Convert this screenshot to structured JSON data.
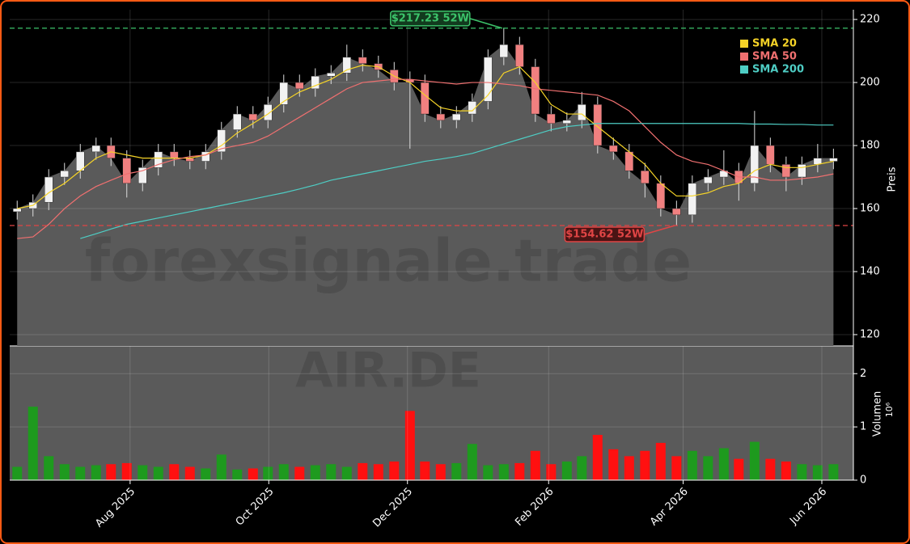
{
  "chart_data": [
    {
      "type": "candlestick",
      "symbol": "AIR.DE",
      "watermark": "forexsignale.trade",
      "ylabel": "Preis",
      "x": [
        2025.445,
        2025.464,
        2025.483,
        2025.502,
        2025.521,
        2025.54,
        2025.558,
        2025.577,
        2025.596,
        2025.615,
        2025.634,
        2025.653,
        2025.672,
        2025.691,
        2025.71,
        2025.729,
        2025.747,
        2025.766,
        2025.785,
        2025.804,
        2025.823,
        2025.842,
        2025.861,
        2025.88,
        2025.899,
        2025.918,
        2025.936,
        2025.955,
        2025.974,
        2025.993,
        2026.012,
        2026.031,
        2026.05,
        2026.069,
        2026.088,
        2026.107,
        2026.125,
        2026.144,
        2026.163,
        2026.182,
        2026.201,
        2026.22,
        2026.239,
        2026.258,
        2026.277,
        2026.296,
        2026.314,
        2026.333,
        2026.352,
        2026.371,
        2026.39,
        2026.409,
        2026.428
      ],
      "open": [
        159,
        160,
        162,
        170,
        172,
        178,
        180,
        176,
        168,
        173,
        178,
        176,
        175,
        178,
        185,
        190,
        188,
        193,
        200,
        198,
        202,
        203,
        208,
        206,
        204,
        201,
        200,
        190,
        188,
        190,
        194,
        208,
        212,
        205,
        190,
        187,
        188,
        193,
        180,
        178,
        172,
        168,
        160,
        158,
        168,
        170,
        172,
        168,
        180,
        174,
        170,
        174,
        175
      ],
      "high": [
        162.5,
        164.5,
        172.5,
        174.5,
        180.5,
        182.5,
        182.5,
        178.5,
        175.5,
        180.5,
        180.5,
        178.5,
        180.5,
        187.5,
        192.5,
        192.5,
        195.5,
        202.5,
        202.5,
        204.5,
        205.5,
        212,
        210.5,
        208.5,
        206.5,
        203.5,
        202.5,
        192.5,
        192.5,
        196.5,
        210.5,
        217.23,
        214.5,
        207.5,
        192.5,
        190.5,
        197,
        195.5,
        182.5,
        180.5,
        174.5,
        170.5,
        162.5,
        170.5,
        172.5,
        178.5,
        174.5,
        191,
        182.5,
        176.5,
        176.5,
        180.5,
        179
      ],
      "low": [
        156.5,
        157.5,
        159.5,
        167.5,
        169.5,
        175.5,
        173.5,
        163.5,
        165.5,
        170.5,
        173.5,
        172.5,
        172.5,
        175.5,
        182.5,
        185.5,
        185.5,
        190.5,
        195.5,
        195.5,
        199.5,
        200.5,
        203.5,
        201.5,
        197.5,
        179,
        187.5,
        185.5,
        185.5,
        187.5,
        191.5,
        205.5,
        202.5,
        187.5,
        184.5,
        184.5,
        185.5,
        177.5,
        175.5,
        169.5,
        163.5,
        157.5,
        154.62,
        155.5,
        165.5,
        167.5,
        162.5,
        165.5,
        171.5,
        165.5,
        167.5,
        171.5,
        172.5
      ],
      "close": [
        160,
        162,
        170,
        172,
        178,
        180,
        176,
        168,
        173,
        178,
        176,
        175,
        178,
        185,
        190,
        188,
        193,
        200,
        198,
        202,
        203,
        208,
        206,
        204,
        200,
        200,
        190,
        188,
        190,
        194,
        208,
        212,
        205,
        190,
        187,
        188,
        193,
        180,
        178,
        172,
        168,
        160,
        158,
        168,
        170,
        172,
        168,
        180,
        174,
        170,
        174,
        176,
        176
      ],
      "up_color": "#f2f2f2",
      "down_color": "#f08080",
      "area_color": "#5a5a5a",
      "series": [
        {
          "name": "SMA 20",
          "color": "#f5d327",
          "values": [
            160,
            161,
            165,
            168,
            172,
            176,
            178,
            177,
            176,
            176,
            176,
            176,
            177,
            180,
            184,
            187,
            190,
            194,
            197,
            199,
            201,
            204,
            205.5,
            205,
            202,
            200,
            196,
            192,
            191,
            191,
            196,
            203,
            205,
            200,
            193,
            190,
            190,
            186,
            182,
            178,
            174,
            168,
            164,
            164,
            165,
            167,
            168,
            172,
            174,
            173,
            173,
            174,
            175
          ]
        },
        {
          "name": "SMA 50",
          "color": "#f07070",
          "values": [
            150.5,
            151,
            155,
            160,
            164,
            167,
            169,
            171,
            172,
            174,
            175.5,
            176.5,
            177,
            179,
            180,
            181,
            183,
            186,
            189,
            192,
            195,
            198,
            200,
            200.5,
            201,
            201,
            200.5,
            200,
            199.5,
            200,
            200,
            199.5,
            199,
            198,
            197.5,
            197,
            196.5,
            196,
            194,
            191,
            186,
            181,
            177,
            175,
            174,
            172,
            170,
            170,
            169,
            169,
            169.5,
            170,
            171
          ]
        },
        {
          "name": "SMA 200",
          "color": "#4ecdc4",
          "values": [
            null,
            null,
            null,
            null,
            150.5,
            152,
            153.5,
            155,
            156,
            157,
            158,
            159,
            160,
            161,
            162,
            163,
            164,
            165,
            166.2,
            167.5,
            169,
            170,
            171,
            172,
            173,
            174,
            175,
            175.7,
            176.5,
            177.5,
            179,
            180.5,
            182,
            183.5,
            185,
            186,
            186.5,
            187,
            187,
            187,
            187,
            187,
            187,
            187,
            187,
            187,
            187,
            186.8,
            186.8,
            186.7,
            186.7,
            186.5,
            186.5
          ]
        }
      ],
      "annotations": [
        {
          "value": 217.23,
          "label": "$217.23 52W",
          "x": 2026.031,
          "color": "#3cc36a"
        },
        {
          "value": 154.62,
          "label": "$154.62 52W",
          "x": 2026.239,
          "color": "#e04545"
        }
      ],
      "legend": "upper right",
      "grid": true,
      "xlim": [
        2025.436,
        2026.452
      ],
      "ylim": [
        116.4,
        223.1
      ],
      "yticks": [
        120,
        140,
        160,
        180,
        200,
        220
      ]
    },
    {
      "type": "bar",
      "ylabel": "Volumen",
      "scale_label": "10⁶",
      "background": "#5a5a5a",
      "up_color": "#1e9a1e",
      "down_color": "#ff1010",
      "x": [
        2025.445,
        2025.464,
        2025.483,
        2025.502,
        2025.521,
        2025.54,
        2025.558,
        2025.577,
        2025.596,
        2025.615,
        2025.634,
        2025.653,
        2025.672,
        2025.691,
        2025.71,
        2025.729,
        2025.747,
        2025.766,
        2025.785,
        2025.804,
        2025.823,
        2025.842,
        2025.861,
        2025.88,
        2025.899,
        2025.918,
        2025.936,
        2025.955,
        2025.974,
        2025.993,
        2026.012,
        2026.031,
        2026.05,
        2026.069,
        2026.088,
        2026.107,
        2026.125,
        2026.144,
        2026.163,
        2026.182,
        2026.201,
        2026.22,
        2026.239,
        2026.258,
        2026.277,
        2026.296,
        2026.314,
        2026.333,
        2026.352,
        2026.371,
        2026.39,
        2026.409,
        2026.428
      ],
      "values": [
        0.25,
        1.38,
        0.45,
        0.3,
        0.25,
        0.28,
        0.3,
        0.32,
        0.28,
        0.25,
        0.3,
        0.25,
        0.22,
        0.48,
        0.2,
        0.22,
        0.25,
        0.3,
        0.25,
        0.28,
        0.3,
        0.25,
        0.32,
        0.3,
        0.35,
        1.3,
        0.35,
        0.3,
        0.32,
        0.68,
        0.28,
        0.3,
        0.32,
        0.55,
        0.3,
        0.35,
        0.45,
        0.85,
        0.58,
        0.45,
        0.55,
        0.7,
        0.45,
        0.55,
        0.45,
        0.6,
        0.4,
        0.72,
        0.4,
        0.35,
        0.3,
        0.28,
        0.3
      ],
      "grid": true,
      "xlim": [
        2025.436,
        2026.452
      ],
      "ylim": [
        0,
        2.52
      ],
      "yticks": [
        0,
        1,
        2
      ],
      "xticks": [
        {
          "value": 2025.581,
          "label": "Aug 2025"
        },
        {
          "value": 2025.748,
          "label": "Oct 2025"
        },
        {
          "value": 2025.915,
          "label": "Dec 2025"
        },
        {
          "value": 2026.085,
          "label": "Feb 2026"
        },
        {
          "value": 2026.247,
          "label": "Apr 2026"
        },
        {
          "value": 2026.414,
          "label": "Jun 2026"
        }
      ]
    }
  ]
}
